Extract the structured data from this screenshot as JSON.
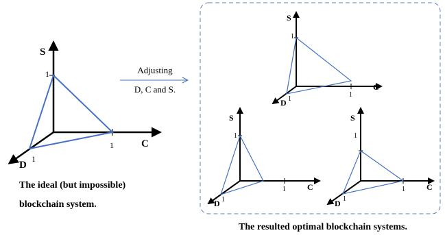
{
  "axes": {
    "s": "S",
    "c": "C",
    "d": "D",
    "one": "1"
  },
  "arrow_caption": {
    "line1": "Adjusting",
    "line2": "D, C and S."
  },
  "left_caption": {
    "line1": "The ideal (but impossible)",
    "line2": "blockchain system."
  },
  "box_caption": "The resulted optimal blockchain systems.",
  "colors": {
    "axis": "#000000",
    "triangle": "#4472C4",
    "box_border": "#5B7FBF"
  }
}
